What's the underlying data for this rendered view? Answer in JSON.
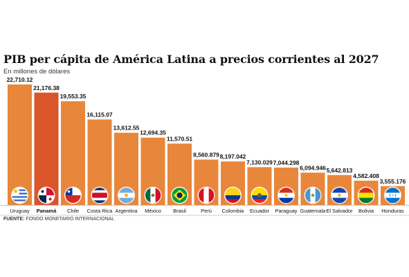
{
  "title": "PIB per cápita de América Latina a precios corrientes al 2027",
  "subtitle": "En millones de dólares",
  "source_label": "FUENTE:",
  "source_text": "FONDO MONETARIO INTERNACIONAL",
  "colors": {
    "bar": "#e8873c",
    "highlight": "#d9552a",
    "text": "#111111"
  },
  "chart_data": {
    "type": "bar",
    "categories": [
      "Uruguay",
      "Panamá",
      "Chile",
      "Costa Rica",
      "Argentina",
      "México",
      "Brasil",
      "Perú",
      "Colombia",
      "Ecuador",
      "Paraguay",
      "Guatemala",
      "El Salvador",
      "Bolivia",
      "Honduras"
    ],
    "values": [
      22710.12,
      21176.38,
      19553.35,
      16115.07,
      13612.55,
      12694.35,
      11570.51,
      8560.879,
      8197.042,
      7130.029,
      7044.298,
      6094.946,
      5642.813,
      4582.408,
      3555.176
    ],
    "labels": [
      "22,710.12",
      "21,176.38",
      "19,553.35",
      "16,115.07",
      "13,612.55",
      "12,694.35",
      "11,570.51",
      "8,560.879",
      "8,197.042",
      "7,130.029",
      "7,044.298",
      "6,094.946",
      "5,642.813",
      "4,582.408",
      "3,555.176"
    ],
    "highlight": "Panamá",
    "flag_icons": [
      "uruguay-flag-icon",
      "panama-flag-icon",
      "chile-flag-icon",
      "costa-rica-flag-icon",
      "argentina-flag-icon",
      "mexico-flag-icon",
      "brazil-flag-icon",
      "peru-flag-icon",
      "colombia-flag-icon",
      "ecuador-flag-icon",
      "paraguay-flag-icon",
      "guatemala-flag-icon",
      "el-salvador-flag-icon",
      "bolivia-flag-icon",
      "honduras-flag-icon"
    ],
    "ylim": [
      0,
      22710.12
    ],
    "grid": false,
    "legend": "none"
  }
}
